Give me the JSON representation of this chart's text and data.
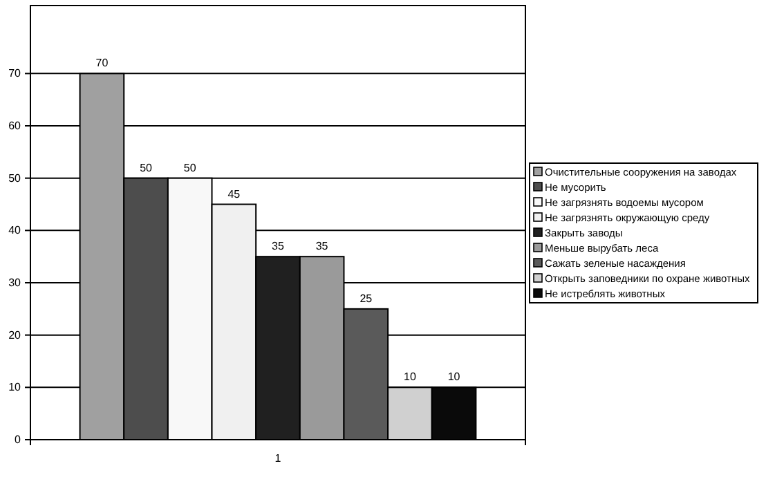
{
  "chart_data": {
    "type": "bar",
    "categories": [
      "1"
    ],
    "ylim": [
      0,
      83
    ],
    "yticks": [
      0,
      10,
      20,
      30,
      40,
      50,
      60,
      70
    ],
    "grid": "y",
    "legend": "right",
    "data_labels": true,
    "series": [
      {
        "name": "Очистительные сооружения на заводах",
        "color": "#a0a0a0",
        "values": [
          70
        ]
      },
      {
        "name": "Не мусорить",
        "color": "#4d4d4d",
        "values": [
          50
        ]
      },
      {
        "name": "Не загрязнять водоемы мусором",
        "color": "#f8f8f8",
        "values": [
          50
        ]
      },
      {
        "name": "Не загрязнять окружающую среду",
        "color": "#f0f0f0",
        "values": [
          45
        ]
      },
      {
        "name": "Закрыть заводы",
        "color": "#202020",
        "values": [
          35
        ]
      },
      {
        "name": "Меньше вырубать леса",
        "color": "#9a9a9a",
        "values": [
          35
        ]
      },
      {
        "name": "Сажать зеленые насаждения",
        "color": "#5a5a5a",
        "values": [
          25
        ]
      },
      {
        "name": "Открыть заповедники по охране животных",
        "color": "#d0d0d0",
        "values": [
          10
        ]
      },
      {
        "name": "Не истреблять животных",
        "color": "#0a0a0a",
        "values": [
          10
        ]
      }
    ]
  }
}
